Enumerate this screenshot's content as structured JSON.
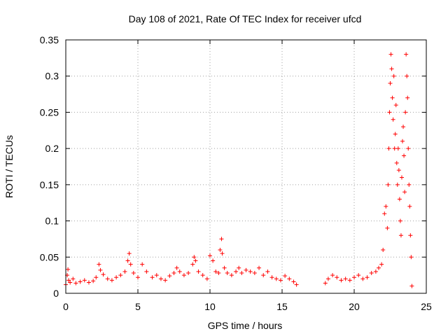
{
  "chart_data": {
    "type": "scatter",
    "title": "Day 108 of 2021, Rate Of TEC Index for receiver ufcd",
    "xlabel": "GPS time / hours",
    "ylabel": "ROTI / TECUs",
    "xlim": [
      0,
      25
    ],
    "ylim": [
      0,
      0.35
    ],
    "xticks": [
      0,
      5,
      10,
      15,
      20,
      25
    ],
    "xtick_labels": [
      "0",
      "5",
      "10",
      "15",
      "20",
      "25"
    ],
    "yticks": [
      0,
      0.05,
      0.1,
      0.15,
      0.2,
      0.25,
      0.3,
      0.35
    ],
    "ytick_labels": [
      "0",
      "0.05",
      "0.1",
      "0.15",
      "0.2",
      "0.25",
      "0.3",
      "0.35"
    ],
    "grid": true,
    "marker": "plus",
    "color": "#ff0000",
    "series": [
      {
        "x": [
          0.0,
          0.1,
          0.15,
          0.2,
          0.3,
          0.5,
          0.7,
          1.0,
          1.3,
          1.6,
          1.9,
          2.1,
          2.3,
          2.4,
          2.6,
          2.9,
          3.2,
          3.5,
          3.8,
          4.1,
          4.3,
          4.4,
          4.5,
          4.7,
          5.0,
          5.3,
          5.6,
          6.0,
          6.3,
          6.6,
          6.9,
          7.2,
          7.5,
          7.7,
          7.9,
          8.2,
          8.5,
          8.8,
          8.9,
          9.0,
          9.2,
          9.5,
          9.8,
          10.0,
          10.2,
          10.4,
          10.6,
          10.7,
          10.8,
          10.85,
          11.0,
          11.2,
          11.5,
          11.8,
          12.0,
          12.2,
          12.5,
          12.8,
          13.1,
          13.4,
          13.7,
          14.0,
          14.3,
          14.6,
          14.9,
          15.2,
          15.5,
          15.8,
          16.0,
          18.0,
          18.2,
          18.5,
          18.8,
          19.1,
          19.4,
          19.7,
          20.0,
          20.3,
          20.6,
          20.9,
          21.2,
          21.5,
          21.7,
          21.9,
          22.0,
          22.1,
          22.2,
          22.3,
          22.35,
          22.4,
          22.45,
          22.5,
          22.55,
          22.6,
          22.65,
          22.7,
          22.75,
          22.8,
          22.85,
          22.9,
          22.95,
          23.0,
          23.05,
          23.1,
          23.15,
          23.2,
          23.25,
          23.3,
          23.35,
          23.4,
          23.45,
          23.5,
          23.55,
          23.6,
          23.65,
          23.7,
          23.75,
          23.8,
          23.85,
          23.9,
          23.95,
          24.0
        ],
        "y": [
          0.012,
          0.025,
          0.033,
          0.018,
          0.015,
          0.02,
          0.014,
          0.016,
          0.018,
          0.015,
          0.017,
          0.022,
          0.04,
          0.032,
          0.026,
          0.02,
          0.018,
          0.022,
          0.025,
          0.03,
          0.045,
          0.055,
          0.04,
          0.028,
          0.022,
          0.04,
          0.03,
          0.022,
          0.025,
          0.02,
          0.018,
          0.024,
          0.028,
          0.035,
          0.03,
          0.025,
          0.028,
          0.04,
          0.05,
          0.045,
          0.03,
          0.025,
          0.02,
          0.052,
          0.045,
          0.03,
          0.028,
          0.06,
          0.075,
          0.055,
          0.035,
          0.028,
          0.025,
          0.03,
          0.035,
          0.028,
          0.032,
          0.03,
          0.028,
          0.035,
          0.025,
          0.03,
          0.022,
          0.02,
          0.018,
          0.024,
          0.02,
          0.016,
          0.012,
          0.014,
          0.02,
          0.025,
          0.022,
          0.018,
          0.02,
          0.018,
          0.022,
          0.025,
          0.02,
          0.022,
          0.028,
          0.03,
          0.035,
          0.04,
          0.06,
          0.11,
          0.12,
          0.09,
          0.15,
          0.2,
          0.25,
          0.29,
          0.33,
          0.31,
          0.27,
          0.24,
          0.3,
          0.2,
          0.22,
          0.26,
          0.18,
          0.15,
          0.2,
          0.17,
          0.13,
          0.1,
          0.08,
          0.16,
          0.21,
          0.23,
          0.19,
          0.14,
          0.25,
          0.33,
          0.3,
          0.27,
          0.2,
          0.15,
          0.12,
          0.08,
          0.05,
          0.01
        ]
      }
    ]
  }
}
